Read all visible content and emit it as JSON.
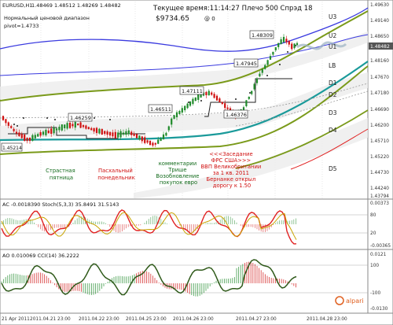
{
  "header": {
    "symbol": "EURUSD,H1",
    "ohlc": "1.48469 1.48512 1.48269 1.48482",
    "range_label": "Нормальный ценовой диапазон",
    "pivot_label": "pivot=1.4733",
    "account": "$9734.65",
    "info": "Текущее время:11:14:27 Плечо 500 Спрэд 18",
    "counter": "@ 0"
  },
  "levels": [
    "U3",
    "U2",
    "U1",
    "LB",
    "D1",
    "D2",
    "D3",
    "D4",
    "D5"
  ],
  "price_axis": [
    "1.49630",
    "1.49140",
    "1.48650",
    "1.48160",
    "1.47670",
    "1.47180",
    "1.46690",
    "1.46200",
    "1.45710",
    "1.45220",
    "1.44730",
    "1.44240",
    "1.43794"
  ],
  "current_price": "1.48482",
  "price_labels": [
    "1.46259",
    "1.46511",
    "1.47111",
    "1.47945",
    "1.48309",
    "1.46376",
    "1.45214"
  ],
  "annotations": {
    "friday": [
      "Страстная",
      "пятница"
    ],
    "monday": [
      "Пасхальный",
      "понедельник"
    ],
    "comments": [
      "комментарии",
      "Трише",
      "Возобновление",
      "покупок евро"
    ],
    "fed": [
      "<<<Заседание",
      "ФРС США>>>",
      "ВВП Великобритании",
      "за 1 кв. 2011",
      "Бернанке открыл",
      "дорогу к 1.50"
    ]
  },
  "stoch": {
    "label": "AC -0.0018390  Stoch(5,3,3) 35.8491 31.5143",
    "axis": [
      "0.00373",
      "80",
      "20",
      "-0.00365"
    ]
  },
  "ao": {
    "label": "AO 0.010069  CCI(14) 36.2222",
    "axis": [
      "0.0121",
      "100",
      "-100",
      "-0.0130"
    ]
  },
  "time_axis": [
    "21 Apr 2011",
    "2011.04.21 23:00",
    "2011.04.22 23:00",
    "2011.04.25 23:00",
    "2011.04.26 23:00",
    "2011.04.27 23:00",
    "2011.04.28 23:00"
  ],
  "brand": "alpari",
  "colors": {
    "bull": "#1f8a2a",
    "bear": "#d01010",
    "u3": "#3a3adf",
    "main": "#7a9a1a",
    "teal": "#1a9a9a",
    "red": "#e02020"
  }
}
